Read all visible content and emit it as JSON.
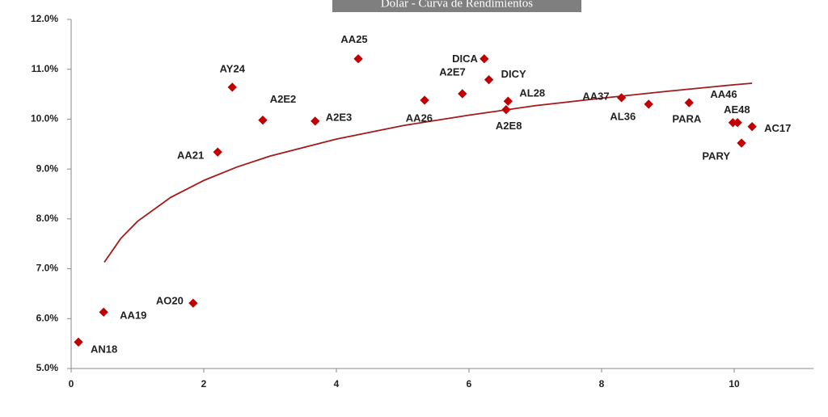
{
  "chart_data": {
    "type": "scatter",
    "title": "Dolar - Curva de Rendimientos",
    "color": "#c00000",
    "labels": [
      "AN18",
      "AA19",
      "AO20",
      "AA21",
      "AY24",
      "A2E2",
      "A2E3",
      "AA25",
      "AA26",
      "A2E7",
      "DICA",
      "DICY",
      "AL28",
      "A2E8",
      "AA37",
      "AL36",
      "PARA",
      "AA46",
      "AE48",
      "PARY",
      "AC17"
    ],
    "x": [
      0.11,
      0.49,
      1.84,
      2.21,
      2.43,
      2.89,
      3.68,
      4.33,
      5.33,
      5.9,
      6.23,
      6.3,
      6.59,
      6.56,
      8.3,
      8.71,
      9.32,
      9.98,
      10.05,
      10.11,
      10.27
    ],
    "values": [
      5.53,
      6.13,
      6.31,
      9.34,
      10.64,
      9.98,
      9.96,
      11.21,
      10.38,
      10.51,
      11.21,
      10.79,
      10.36,
      10.19,
      10.43,
      10.3,
      10.33,
      9.93,
      9.93,
      9.52,
      9.85
    ],
    "trendline": {
      "color": "#a31a1a",
      "x": [
        0.5,
        0.75,
        1,
        1.5,
        2,
        2.5,
        3,
        4,
        5,
        6,
        7,
        8,
        9,
        10,
        10.27
      ],
      "values": [
        7.13,
        7.61,
        7.95,
        8.43,
        8.77,
        9.04,
        9.26,
        9.6,
        9.87,
        10.08,
        10.27,
        10.42,
        10.56,
        10.69,
        10.72
      ]
    },
    "xlim": [
      0,
      11.2
    ],
    "xticks": [
      0,
      2,
      4,
      6,
      8,
      10
    ],
    "ylim": [
      5,
      12
    ],
    "yticks": [
      {
        "value": 5,
        "label": "5.0%"
      },
      {
        "value": 6,
        "label": "6.0%"
      },
      {
        "value": 7,
        "label": "7.0%"
      },
      {
        "value": 8,
        "label": "8.0%"
      },
      {
        "value": 9,
        "label": "9.0%"
      },
      {
        "value": 10,
        "label": "10.0%"
      },
      {
        "value": 11,
        "label": "11.0%"
      },
      {
        "value": 12,
        "label": "12.0%"
      }
    ]
  }
}
